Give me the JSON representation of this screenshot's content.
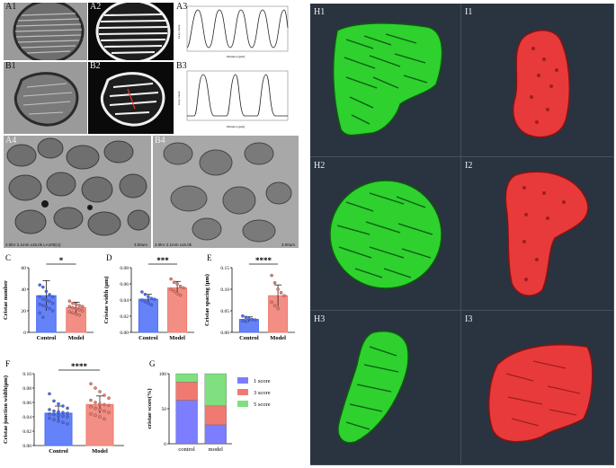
{
  "em_panels": {
    "A1": "A1",
    "A2": "A2",
    "A3": "A3",
    "B1": "B1",
    "B2": "B2",
    "B3": "B3",
    "A4": "A4",
    "B4": "B4",
    "scale_left": "2.0kV 2.1mm x15.0k LA100(U)",
    "scale_left_bar": "3.00um",
    "scale_right": "2.0kV 2.1mm x15.0k",
    "scale_right_bar": "3.00um"
  },
  "profiles": {
    "a3": {
      "ylabel": "Gray value",
      "xlabel": "Distance (µm)"
    },
    "b3": {
      "ylabel": "Gray value",
      "xlabel": "Distance (µm)"
    }
  },
  "renders": {
    "labels": [
      "H1",
      "I1",
      "H2",
      "I2",
      "H3",
      "I3"
    ],
    "colors": {
      "model_green": "#2ed12e",
      "control_red": "#e83a3a",
      "background": "#2a3340"
    }
  },
  "chart_data": [
    {
      "id": "C",
      "type": "bar",
      "categories": [
        "Control",
        "Model"
      ],
      "values": [
        34,
        23
      ],
      "errors": [
        14,
        5
      ],
      "ylabel": "Cristae number",
      "ylim": [
        0,
        60
      ],
      "yticks": [
        0,
        20,
        40,
        60
      ],
      "significance": "*",
      "colors": [
        "#4a6cf7",
        "#f07a6e"
      ],
      "points": [
        [
          44,
          42,
          38,
          35,
          33,
          33,
          31,
          30,
          29,
          27,
          26,
          25,
          24,
          22,
          20,
          18,
          14
        ],
        [
          29,
          27,
          26,
          25,
          24,
          24,
          23,
          22,
          21,
          20,
          19,
          18,
          17,
          16
        ]
      ]
    },
    {
      "id": "D",
      "type": "bar",
      "categories": [
        "Control",
        "Model"
      ],
      "values": [
        0.041,
        0.055
      ],
      "errors": [
        0.006,
        0.008
      ],
      "ylabel": "Cristae width (µm)",
      "ylim": [
        0,
        0.08
      ],
      "yticks": [
        0.0,
        0.02,
        0.04,
        0.06,
        0.08
      ],
      "significance": "***",
      "colors": [
        "#4a6cf7",
        "#f07a6e"
      ],
      "points": [
        [
          0.05,
          0.047,
          0.044,
          0.042,
          0.041,
          0.04,
          0.038,
          0.036,
          0.034
        ],
        [
          0.066,
          0.062,
          0.06,
          0.057,
          0.055,
          0.053,
          0.051,
          0.048,
          0.046
        ]
      ]
    },
    {
      "id": "E",
      "type": "bar",
      "categories": [
        "Control",
        "Model"
      ],
      "values": [
        0.03,
        0.085
      ],
      "errors": [
        0.006,
        0.025
      ],
      "ylabel": "Cristae spacing (µm)",
      "ylim": [
        0,
        0.15
      ],
      "yticks": [
        0.0,
        0.05,
        0.1,
        0.15
      ],
      "significance": "****",
      "colors": [
        "#4a6cf7",
        "#f07a6e"
      ],
      "points": [
        [
          0.038,
          0.035,
          0.032,
          0.03,
          0.029,
          0.027,
          0.025
        ],
        [
          0.132,
          0.115,
          0.1,
          0.092,
          0.085,
          0.07,
          0.062,
          0.055
        ]
      ]
    },
    {
      "id": "F",
      "type": "bar",
      "categories": [
        "Control",
        "Model"
      ],
      "values": [
        0.045,
        0.057
      ],
      "errors": [
        0.01,
        0.012
      ],
      "ylabel": "Cristae junction width(µm)",
      "ylim": [
        0,
        0.1
      ],
      "yticks": [
        0.0,
        0.02,
        0.04,
        0.06,
        0.08,
        0.1
      ],
      "significance": "****",
      "colors": [
        "#4a6cf7",
        "#f07a6e"
      ],
      "points": [
        [
          0.072,
          0.062,
          0.058,
          0.055,
          0.052,
          0.05,
          0.048,
          0.047,
          0.046,
          0.045,
          0.044,
          0.043,
          0.042,
          0.041,
          0.04,
          0.038,
          0.036,
          0.034,
          0.032,
          0.03
        ],
        [
          0.086,
          0.08,
          0.075,
          0.07,
          0.066,
          0.063,
          0.06,
          0.058,
          0.057,
          0.056,
          0.054,
          0.052,
          0.05,
          0.048,
          0.046,
          0.044,
          0.042,
          0.04,
          0.037
        ]
      ]
    },
    {
      "id": "G",
      "type": "bar",
      "stacked": true,
      "categories": [
        "control",
        "model"
      ],
      "ylabel": "cristae score(%)",
      "ylim": [
        0,
        100
      ],
      "yticks": [
        0,
        50,
        100
      ],
      "series": [
        {
          "name": "1 score",
          "values": [
            62,
            27
          ],
          "color": "#7d7dff"
        },
        {
          "name": "3 score",
          "values": [
            26,
            27
          ],
          "color": "#f07a72"
        },
        {
          "name": "5 score",
          "values": [
            12,
            46
          ],
          "color": "#7ee07e"
        }
      ],
      "legend": "right"
    }
  ]
}
